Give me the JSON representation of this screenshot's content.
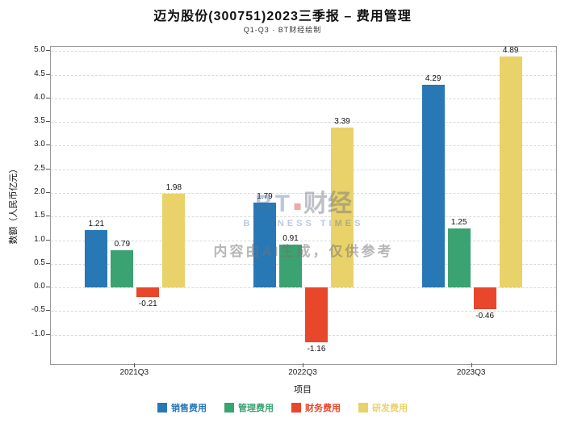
{
  "title": "迈为股份(300751)2023三季报 – 费用管理",
  "subtitle": "Q1-Q3 · BT财经绘制",
  "watermark": {
    "logo_bt": "BT",
    "logo_cn": "财经",
    "logo_sub": "BUSINESS TIMES",
    "disclaimer": "内容由AI生成，仅供参考"
  },
  "chart_data": {
    "type": "bar",
    "title": "迈为股份(300751)2023三季报 – 费用管理",
    "subtitle": "Q1-Q3 · BT财经绘制",
    "categories": [
      "2021Q3",
      "2022Q3",
      "2023Q3"
    ],
    "series": [
      {
        "name": "销售费用",
        "color": "#2878b5",
        "values": [
          1.21,
          1.79,
          4.29
        ]
      },
      {
        "name": "管理费用",
        "color": "#3ba272",
        "values": [
          0.79,
          0.91,
          1.25
        ]
      },
      {
        "name": "财务费用",
        "color": "#e8472b",
        "values": [
          -0.21,
          -1.16,
          -0.46
        ]
      },
      {
        "name": "研发费用",
        "color": "#e9d26a",
        "values": [
          1.98,
          3.39,
          4.89
        ]
      }
    ],
    "xlabel": "项目",
    "ylabel": "数额（人民币亿元）",
    "ylim": [
      -1.62,
      5.09
    ],
    "yticks": [
      5.0,
      4.5,
      4.0,
      3.5,
      3.0,
      2.5,
      2.0,
      1.5,
      1.0,
      0.5,
      0.0,
      -0.5,
      -1.0
    ],
    "grid": true,
    "legend_position": "bottom"
  }
}
